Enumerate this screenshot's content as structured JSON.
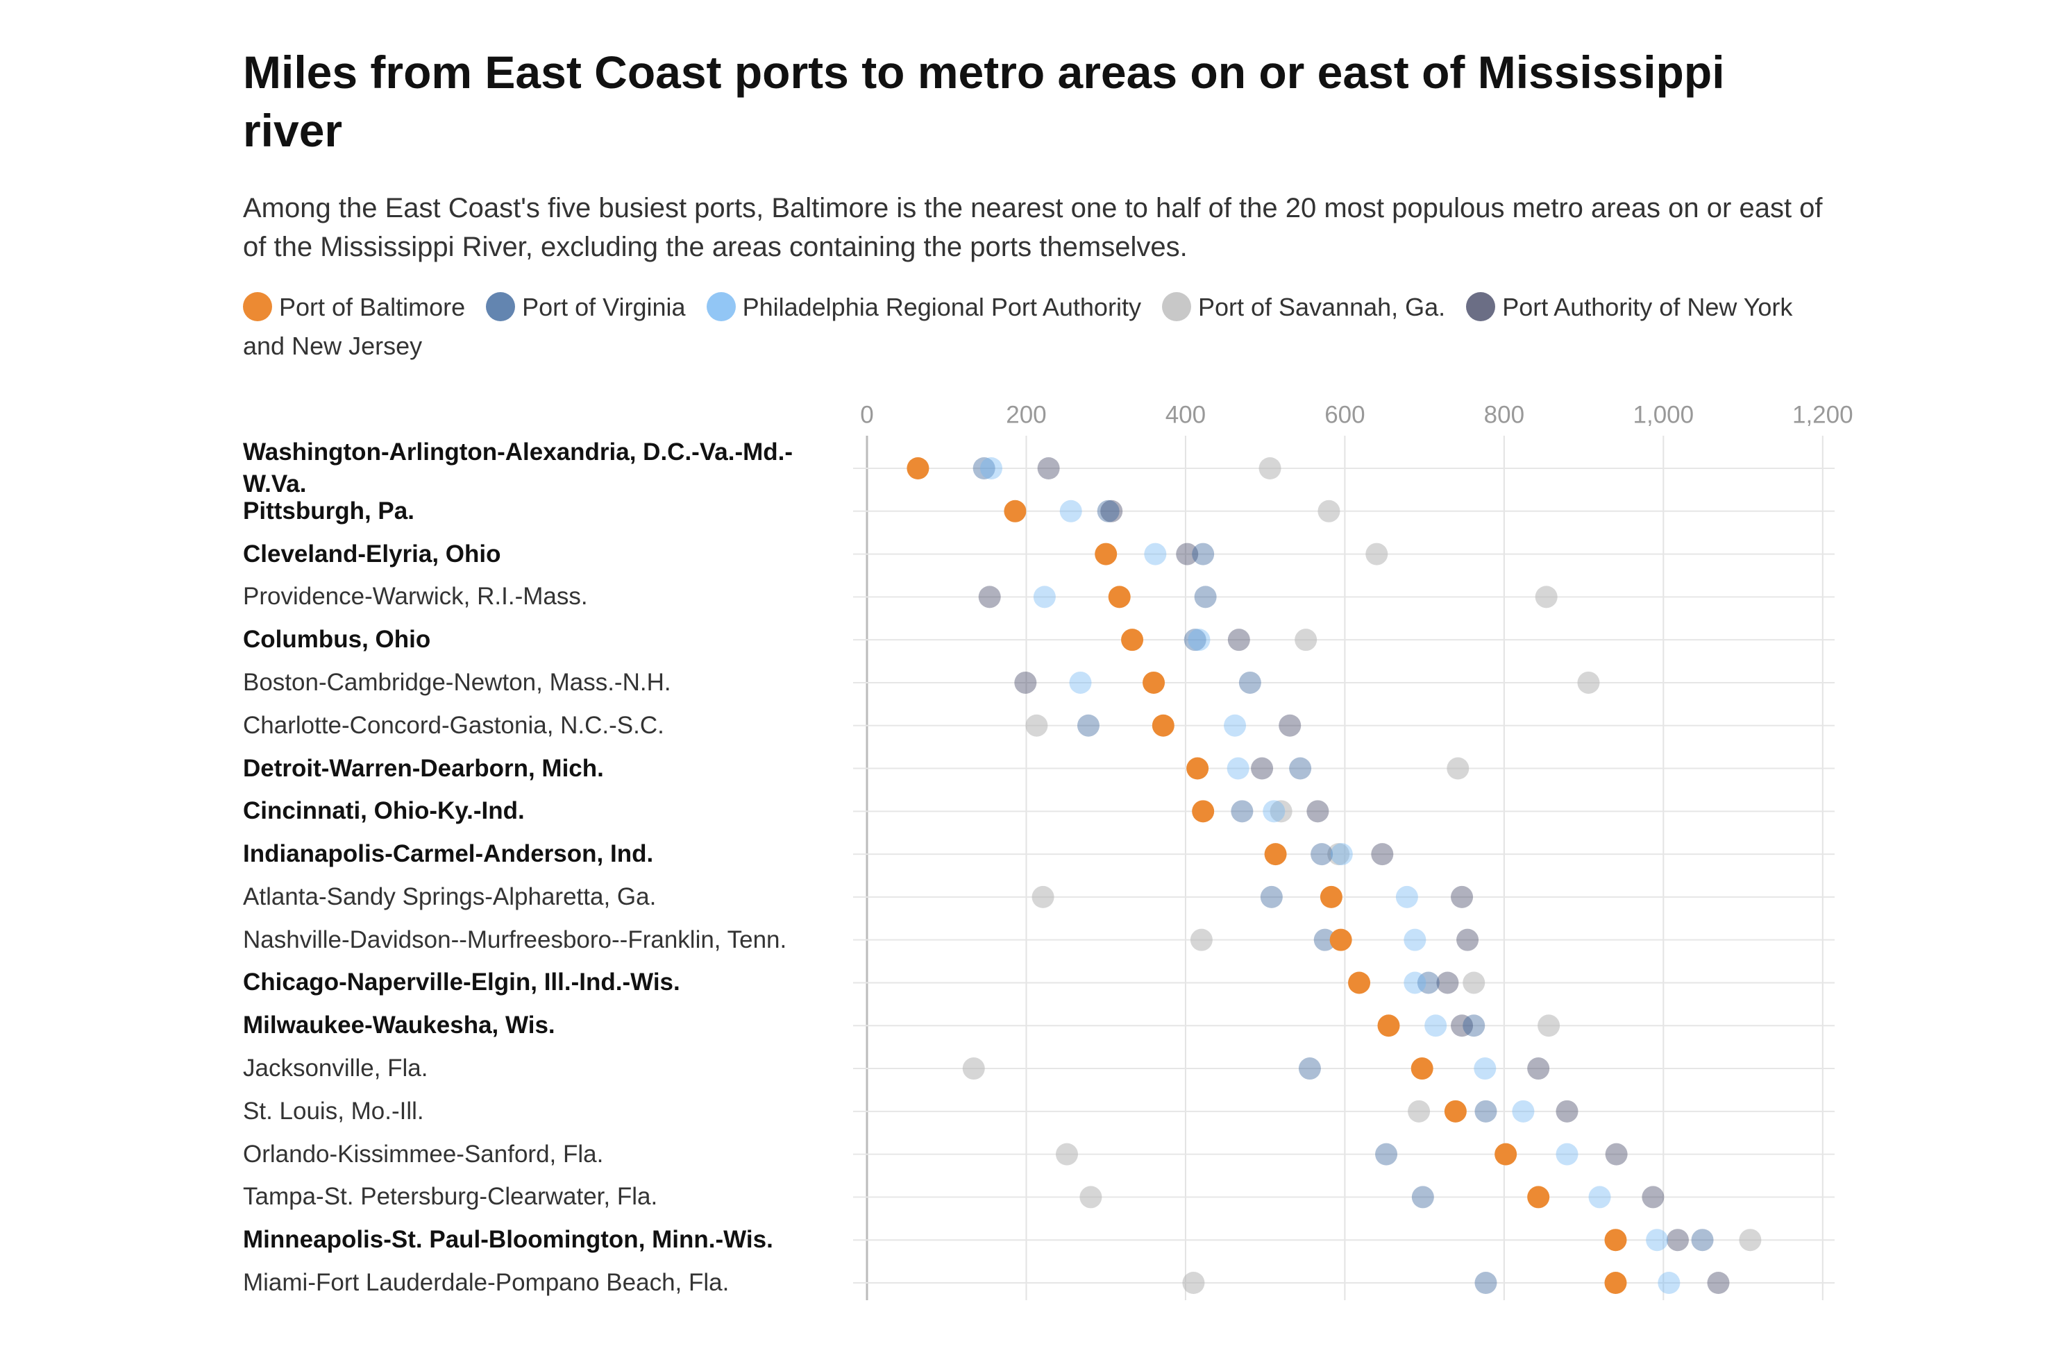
{
  "chart_data": {
    "type": "dot",
    "title": "Miles from East Coast ports to metro areas on or east of Mississippi river",
    "subtitle": "Among the East Coast's five busiest ports, Baltimore is the nearest one to half of the 20 most populous metro areas on or east of of the Mississippi River, excluding the areas containing the ports themselves.",
    "categories": [
      "Washington-Arlington-Alexandria, D.C.-Va.-Md.-W.Va.",
      "Pittsburgh, Pa.",
      "Cleveland-Elyria, Ohio",
      "Providence-Warwick, R.I.-Mass.",
      "Columbus, Ohio",
      "Boston-Cambridge-Newton, Mass.-N.H.",
      "Charlotte-Concord-Gastonia, N.C.-S.C.",
      "Detroit-Warren-Dearborn, Mich.",
      "Cincinnati, Ohio-Ky.-Ind.",
      "Indianapolis-Carmel-Anderson, Ind.",
      "Atlanta-Sandy Springs-Alpharetta, Ga.",
      "Nashville-Davidson--Murfreesboro--Franklin, Tenn.",
      "Chicago-Naperville-Elgin, Ill.-Ind.-Wis.",
      "Milwaukee-Waukesha, Wis.",
      "Jacksonville, Fla.",
      "St. Louis, Mo.-Ill.",
      "Orlando-Kissimmee-Sanford, Fla.",
      "Tampa-St. Petersburg-Clearwater, Fla.",
      "Minneapolis-St. Paul-Bloomington, Minn.-Wis.",
      "Miami-Fort Lauderdale-Pompano Beach, Fla."
    ],
    "bold": [
      true,
      true,
      true,
      false,
      true,
      false,
      false,
      true,
      true,
      true,
      false,
      false,
      true,
      true,
      false,
      false,
      false,
      false,
      true,
      false
    ],
    "series": [
      {
        "name": "Port of Savannah, Ga.",
        "color": "#b5b5b5",
        "opacity": 0.55,
        "values": [
          506,
          580,
          640,
          853,
          551,
          906,
          213,
          742,
          520,
          592,
          221,
          420,
          762,
          856,
          134,
          693,
          251,
          281,
          1109,
          410
        ]
      },
      {
        "name": "Port Authority of New York and New Jersey",
        "color": "#3a3d5c",
        "opacity": 0.4,
        "values": [
          228,
          307,
          402,
          154,
          467,
          199,
          531,
          496,
          566,
          647,
          747,
          754,
          729,
          747,
          843,
          879,
          941,
          987,
          1018,
          1069
        ]
      },
      {
        "name": "Port of Virginia",
        "color": "#2f5c96",
        "opacity": 0.4,
        "values": [
          147,
          303,
          422,
          425,
          412,
          481,
          278,
          544,
          471,
          571,
          508,
          575,
          705,
          762,
          556,
          777,
          652,
          698,
          1049,
          777
        ]
      },
      {
        "name": "Philadelphia Regional Port Authority",
        "color": "#6db3f2",
        "opacity": 0.4,
        "values": [
          156,
          256,
          362,
          223,
          417,
          268,
          462,
          466,
          511,
          596,
          678,
          688,
          688,
          714,
          776,
          824,
          879,
          920,
          992,
          1007
        ]
      },
      {
        "name": "Port of Baltimore",
        "color": "#ec8a33",
        "opacity": 1,
        "values": [
          64,
          186,
          300,
          317,
          333,
          360,
          372,
          415,
          422,
          513,
          583,
          595,
          618,
          655,
          697,
          739,
          802,
          843,
          940,
          940
        ]
      }
    ],
    "legend_order": [
      4,
      2,
      3,
      0,
      1
    ],
    "xlim": [
      0,
      1215
    ],
    "xticks": [
      0,
      200,
      400,
      600,
      800,
      {
        "value": 1000,
        "label": "1,000"
      },
      {
        "value": 1200,
        "label": "1,200"
      }
    ],
    "grid": true
  }
}
